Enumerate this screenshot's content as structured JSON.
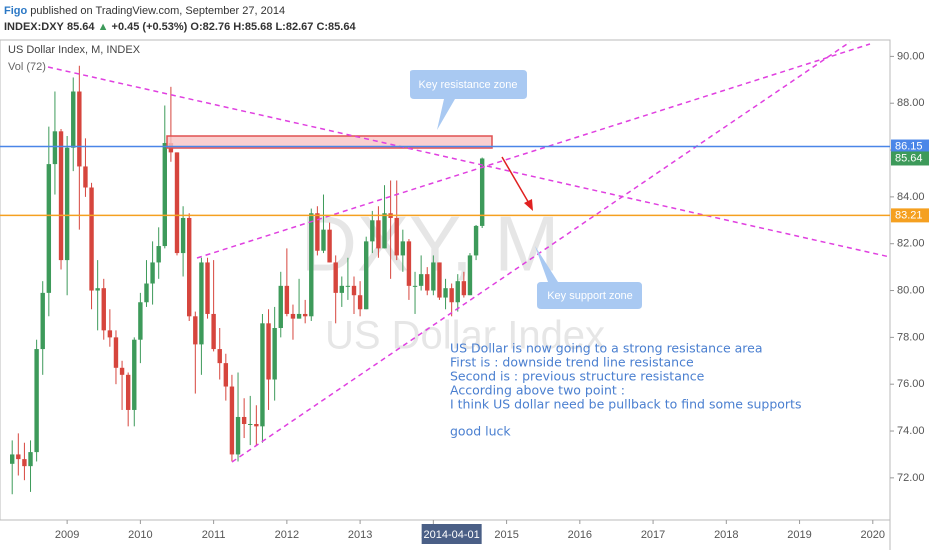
{
  "chart_data": {
    "type": "candlestick",
    "author": "Figo",
    "published": " published on TradingView.com, September 27, 2014",
    "symbol": "INDEX:DXY",
    "arrow": "▲",
    "change": "+0.45 (+0.53%)",
    "ohlc_labels": [
      "O:",
      "H:",
      "L:",
      "C:"
    ],
    "legend_title": "US Dollar Index, M, INDEX",
    "volume_label": "Vol (72)",
    "watermark": [
      "DXY, M",
      "US Dollar Index"
    ],
    "callouts": [
      "Key resistance zone",
      "Key support zone"
    ],
    "note_lines": [
      "US Dollar is now going to a strong resistance area",
      "First is : downside trend line resistance",
      "Second is : previous structure resistance",
      "According above two point :",
      "I think US dollar need be pullback to find some supports"
    ],
    "note_closing": "good luck",
    "cursor_label": "2014-04-01",
    "up_color": "#3d9a5a",
    "down_color": "#d6453d",
    "x": [
      "2008-04",
      "2008-05",
      "2008-06",
      "2008-07",
      "2008-08",
      "2008-09",
      "2008-10",
      "2008-11",
      "2008-12",
      "2009-01",
      "2009-02",
      "2009-03",
      "2009-04",
      "2009-05",
      "2009-06",
      "2009-07",
      "2009-08",
      "2009-09",
      "2009-10",
      "2009-11",
      "2009-12",
      "2010-01",
      "2010-02",
      "2010-03",
      "2010-04",
      "2010-05",
      "2010-06",
      "2010-07",
      "2010-08",
      "2010-09",
      "2010-10",
      "2010-11",
      "2010-12",
      "2011-01",
      "2011-02",
      "2011-03",
      "2011-04",
      "2011-05",
      "2011-06",
      "2011-07",
      "2011-08",
      "2011-09",
      "2011-10",
      "2011-11",
      "2011-12",
      "2012-01",
      "2012-02",
      "2012-03",
      "2012-04",
      "2012-05",
      "2012-06",
      "2012-07",
      "2012-08",
      "2012-09",
      "2012-10",
      "2012-11",
      "2012-12",
      "2013-01",
      "2013-02",
      "2013-03",
      "2013-04",
      "2013-05",
      "2013-06",
      "2013-07",
      "2013-08",
      "2013-09",
      "2013-10",
      "2013-11",
      "2013-12",
      "2014-01",
      "2014-02",
      "2014-03",
      "2014-04",
      "2014-05",
      "2014-06",
      "2014-07",
      "2014-08",
      "2014-09"
    ],
    "open": [
      72.6,
      73.0,
      72.8,
      72.5,
      73.1,
      77.5,
      79.9,
      85.4,
      86.8,
      81.3,
      86.1,
      88.5,
      85.3,
      84.4,
      80.0,
      80.1,
      78.3,
      78.0,
      76.7,
      76.4,
      74.9,
      77.9,
      79.5,
      80.3,
      81.2,
      81.9,
      86.3,
      85.9,
      81.6,
      83.1,
      78.9,
      77.7,
      81.2,
      79.0,
      77.5,
      76.9,
      75.9,
      73.0,
      74.6,
      74.3,
      74.3,
      74.2,
      78.6,
      76.2,
      78.4,
      80.2,
      79.0,
      78.8,
      79.0,
      78.9,
      83.3,
      81.7,
      82.6,
      81.2,
      79.9,
      80.2,
      80.2,
      79.8,
      79.2,
      82.1,
      83.0,
      81.8,
      83.3,
      83.1,
      81.5,
      82.1,
      80.2,
      80.2,
      80.7,
      80.0,
      81.2,
      79.7,
      80.1,
      79.5,
      80.4,
      79.8,
      81.5,
      82.76
    ],
    "high": [
      73.6,
      73.9,
      73.5,
      73.6,
      77.9,
      80.4,
      87.0,
      88.5,
      86.9,
      86.6,
      89.1,
      89.6,
      86.5,
      84.6,
      81.3,
      80.5,
      79.2,
      78.3,
      77.0,
      76.5,
      78.0,
      79.9,
      81.3,
      82.1,
      82.7,
      87.9,
      88.7,
      85.9,
      83.6,
      83.3,
      79.1,
      81.4,
      81.4,
      81.3,
      78.4,
      77.3,
      76.4,
      76.5,
      75.4,
      75.5,
      75.1,
      79.0,
      79.2,
      79.3,
      80.8,
      81.8,
      79.4,
      80.5,
      79.6,
      83.5,
      83.6,
      84.1,
      82.9,
      81.5,
      80.6,
      81.4,
      80.6,
      80.4,
      82.3,
      83.4,
      83.6,
      84.5,
      84.7,
      84.7,
      82.6,
      82.2,
      80.8,
      81.5,
      81.0,
      81.5,
      81.2,
      80.5,
      80.3,
      80.7,
      80.8,
      81.6,
      82.8,
      85.68
    ],
    "low": [
      71.3,
      72.1,
      71.9,
      71.4,
      72.7,
      76.4,
      78.9,
      84.1,
      80.9,
      79.8,
      85.1,
      82.6,
      84.0,
      79.2,
      78.3,
      77.9,
      77.6,
      76.0,
      74.9,
      74.2,
      74.2,
      76.9,
      79.3,
      79.4,
      80.5,
      81.8,
      85.5,
      81.5,
      80.6,
      78.7,
      75.6,
      76.4,
      78.8,
      77.4,
      76.2,
      75.3,
      72.7,
      72.7,
      73.7,
      73.4,
      73.4,
      73.5,
      74.9,
      75.3,
      78.0,
      78.9,
      77.9,
      78.8,
      78.6,
      78.7,
      81.5,
      81.6,
      81.2,
      78.6,
      79.3,
      79.6,
      79.0,
      78.9,
      79.2,
      81.6,
      81.4,
      81.8,
      80.5,
      81.3,
      80.8,
      79.6,
      79.0,
      80.0,
      79.8,
      79.8,
      79.6,
      79.2,
      78.9,
      79.1,
      79.7,
      79.8,
      81.3,
      82.67
    ],
    "close": [
      73.0,
      72.8,
      72.5,
      73.1,
      77.5,
      79.9,
      85.4,
      86.8,
      81.3,
      86.1,
      88.5,
      85.3,
      84.4,
      80.0,
      80.1,
      78.3,
      78.0,
      76.7,
      76.4,
      74.9,
      77.9,
      79.5,
      80.3,
      81.2,
      81.9,
      86.3,
      85.9,
      81.6,
      83.1,
      78.9,
      77.7,
      81.2,
      79.0,
      77.5,
      76.9,
      75.9,
      73.0,
      74.6,
      74.3,
      74.3,
      74.2,
      78.6,
      76.2,
      78.4,
      80.2,
      79.0,
      78.8,
      79.0,
      78.9,
      83.3,
      81.7,
      82.6,
      81.2,
      79.9,
      80.2,
      80.2,
      79.8,
      79.2,
      82.1,
      83.0,
      81.8,
      83.3,
      83.1,
      81.5,
      82.1,
      80.2,
      80.2,
      80.7,
      80.0,
      81.2,
      79.7,
      80.1,
      79.5,
      80.4,
      79.8,
      81.5,
      82.76,
      85.64
    ],
    "price_lines": [
      {
        "value": 86.15,
        "color": "#4a86e8"
      },
      {
        "value": 83.21,
        "color": "#f5a020"
      }
    ],
    "xlim": [
      "2008-02",
      "2020-03"
    ],
    "xticks": [
      "2009",
      "2010",
      "2011",
      "2012",
      "2013",
      "2014",
      "2015",
      "2016",
      "2017",
      "2018",
      "2019",
      "2020"
    ],
    "ylim": [
      70.2,
      90.7
    ],
    "yticks": [
      {
        "value": 72,
        "label": "72.00"
      },
      {
        "value": 74,
        "label": "74.00"
      },
      {
        "value": 76,
        "label": "76.00"
      },
      {
        "value": 78,
        "label": "78.00"
      },
      {
        "value": 80,
        "label": "80.00"
      },
      {
        "value": 82,
        "label": "82.00"
      },
      {
        "value": 84,
        "label": "84.00"
      },
      {
        "value": 86,
        "label": "86.00"
      },
      {
        "value": 88,
        "label": "88.00"
      },
      {
        "value": 90,
        "label": "90.00"
      }
    ],
    "grid": false
  }
}
